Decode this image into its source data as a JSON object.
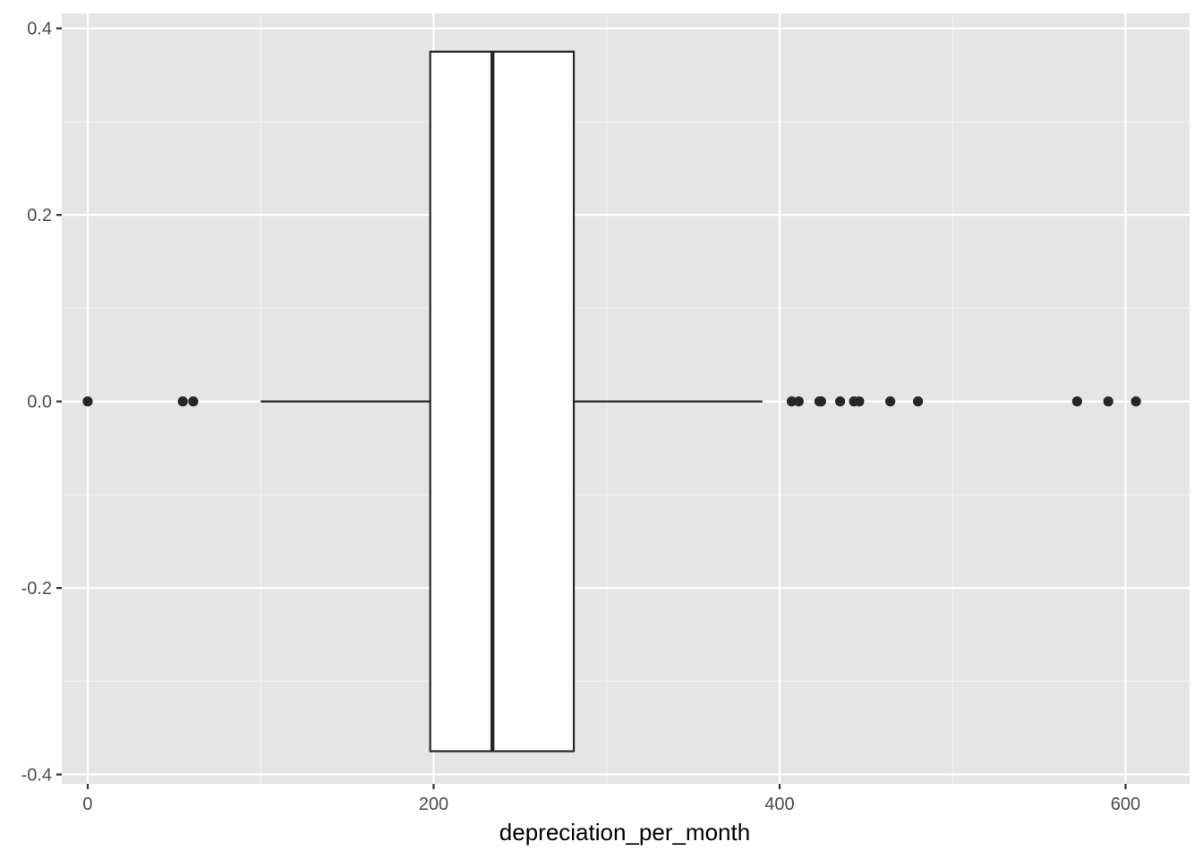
{
  "chart_data": {
    "type": "boxplot",
    "orientation": "horizontal",
    "title": "",
    "xlabel": "depreciation_per_month",
    "ylabel": "",
    "xlim": [
      -15,
      637
    ],
    "ylim": [
      -0.41,
      0.416
    ],
    "x_ticks": [
      0,
      200,
      400,
      600
    ],
    "x_tick_labels": [
      "0",
      "200",
      "400",
      "600"
    ],
    "y_ticks": [
      -0.4,
      -0.2,
      0.0,
      0.2,
      0.4
    ],
    "y_tick_labels": [
      "-0.4",
      "-0.2",
      "0.0",
      "0.2",
      "0.4"
    ],
    "grid": true,
    "legend": "none",
    "box": {
      "y_center": 0.0,
      "y_half_width": 0.375,
      "q1": 198,
      "median": 234,
      "q3": 281,
      "whisker_low": 100,
      "whisker_high": 390
    },
    "outliers": [
      0,
      55,
      61,
      407,
      411,
      423,
      424,
      435,
      443,
      446,
      464,
      480,
      572,
      590,
      606
    ],
    "colors": {
      "panel_background": "#e5e5e5",
      "grid_major": "#ffffff",
      "grid_minor": "#f2f2f2",
      "box_fill": "#ffffff",
      "box_line": "#262626",
      "point": "#262626"
    }
  }
}
